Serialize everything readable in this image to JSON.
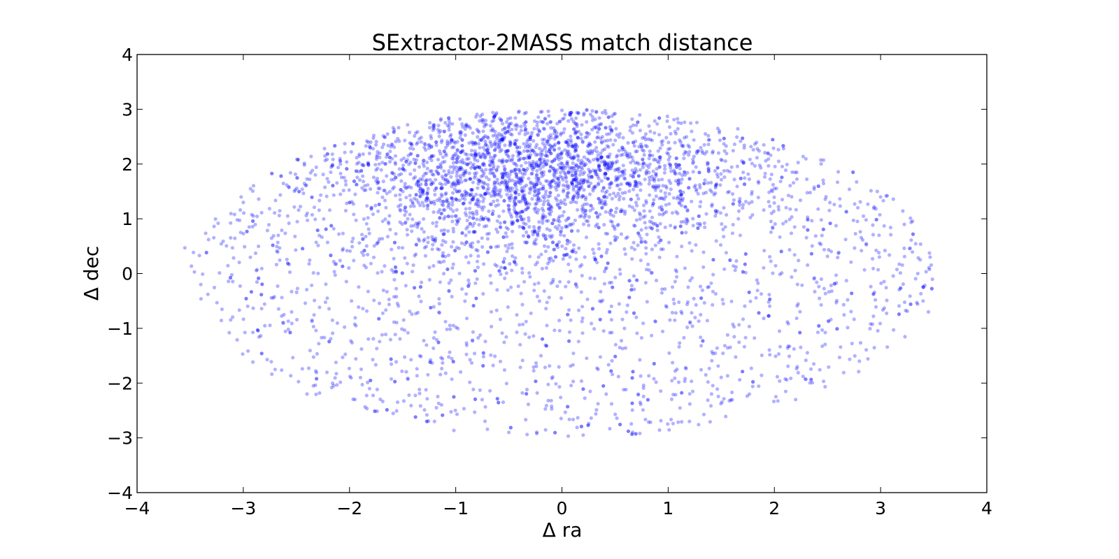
{
  "chart_data": {
    "type": "scatter",
    "title": "SExtractor-2MASS match distance",
    "xlabel": "Δ ra",
    "ylabel": "Δ dec",
    "xlim": [
      -4,
      4
    ],
    "ylim": [
      -4,
      4
    ],
    "xticks": [
      -4,
      -3,
      -2,
      -1,
      0,
      1,
      2,
      3,
      4
    ],
    "yticks": [
      -4,
      -3,
      -2,
      -1,
      0,
      1,
      2,
      3,
      4
    ],
    "xtick_labels": [
      "−4",
      "−3",
      "−2",
      "−1",
      "0",
      "1",
      "2",
      "3",
      "4"
    ],
    "ytick_labels": [
      "−4",
      "−3",
      "−2",
      "−1",
      "0",
      "1",
      "2",
      "3",
      "4"
    ],
    "grid": false,
    "marker_color": "#0000ff",
    "marker_alpha": 0.3,
    "point_count": 4200,
    "distribution": {
      "shape": "ellipse",
      "center": [
        0,
        0
      ],
      "semi_axes": [
        3.5,
        3.0
      ],
      "density_peak": [
        -0.3,
        1.8
      ]
    },
    "points": [
      [
        -3.55,
        0.47
      ],
      [
        3.45,
        -0.7
      ],
      [
        3.4,
        -0.5
      ],
      [
        3.35,
        0.0
      ],
      [
        -3.4,
        -0.2
      ],
      [
        0.0,
        2.98
      ],
      [
        0.2,
        -2.95
      ],
      [
        -0.5,
        -2.9
      ],
      [
        -2.7,
        -1.75
      ],
      [
        2.8,
        -1.6
      ],
      [
        -2.4,
        -2.2
      ],
      [
        2.2,
        -2.3
      ],
      [
        -1.8,
        2.4
      ],
      [
        1.9,
        2.35
      ],
      [
        -3.0,
        1.3
      ],
      [
        3.0,
        1.4
      ],
      [
        -1.2,
        -2.7
      ],
      [
        1.2,
        -2.7
      ],
      [
        -0.2,
        2.95
      ],
      [
        0.5,
        2.92
      ]
    ]
  }
}
